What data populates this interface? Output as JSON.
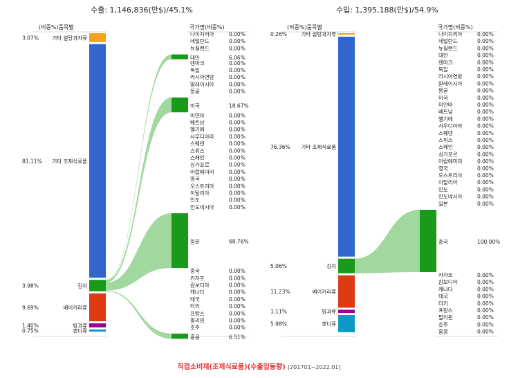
{
  "footer": {
    "title": "직접소비재(조제식료품)(수출입동향)",
    "period": "[201701~2022.01]"
  },
  "colors": {
    "flow": "#8fd18c",
    "country_node": "#1a9a1a"
  },
  "panels": [
    {
      "id": "export",
      "title": "수출: 1,146,836(만$)/45.1%",
      "cat_header": "(비중%)품목별",
      "country_header": "국가명(비중%)",
      "categories": [
        {
          "pct": "3.07%",
          "name": "기타 설탕과자류",
          "value": 3.07,
          "color": "#f7a21b"
        },
        {
          "pct": "81.11%",
          "name": "기타 조제식료품",
          "value": 81.11,
          "color": "#3366cc"
        },
        {
          "pct": "3.98%",
          "name": "김치",
          "value": 3.98,
          "color": "#1a9a1a"
        },
        {
          "pct": "9.69%",
          "name": "베이커리류",
          "value": 9.69,
          "color": "#dd3b15"
        },
        {
          "pct": "1.40%",
          "name": "빙과류",
          "value": 1.4,
          "color": "#990099"
        },
        {
          "pct": "0.75%",
          "name": "캔디류",
          "value": 0.75,
          "color": "#0f99c6"
        }
      ],
      "countries": [
        {
          "name": "나이지리아",
          "pct": "0.00%",
          "value": 0
        },
        {
          "name": "네덜란드",
          "pct": "0.00%",
          "value": 0
        },
        {
          "name": "뉴질랜드",
          "pct": "0.00%",
          "value": 0
        },
        {
          "name": "대만",
          "pct": "6.06%",
          "value": 6.06
        },
        {
          "name": "덴마크",
          "pct": "0.00%",
          "value": 0
        },
        {
          "name": "독일",
          "pct": "0.00%",
          "value": 0
        },
        {
          "name": "러시아연방",
          "pct": "0.00%",
          "value": 0
        },
        {
          "name": "말레이시아",
          "pct": "0.00%",
          "value": 0
        },
        {
          "name": "몽골",
          "pct": "0.00%",
          "value": 0
        },
        {
          "name": "미국",
          "pct": "18.67%",
          "value": 18.67
        },
        {
          "name": "미얀마",
          "pct": "0.00%",
          "value": 0
        },
        {
          "name": "베트남",
          "pct": "0.00%",
          "value": 0
        },
        {
          "name": "벨기에",
          "pct": "0.00%",
          "value": 0
        },
        {
          "name": "사우디아라",
          "pct": "0.00%",
          "value": 0
        },
        {
          "name": "스웨덴",
          "pct": "0.00%",
          "value": 0
        },
        {
          "name": "스위스",
          "pct": "0.00%",
          "value": 0
        },
        {
          "name": "스페인",
          "pct": "0.00%",
          "value": 0
        },
        {
          "name": "싱가포르",
          "pct": "0.00%",
          "value": 0
        },
        {
          "name": "아랍에미리",
          "pct": "0.00%",
          "value": 0
        },
        {
          "name": "영국",
          "pct": "0.00%",
          "value": 0
        },
        {
          "name": "오스트리아",
          "pct": "0.00%",
          "value": 0
        },
        {
          "name": "이탈리아",
          "pct": "0.00%",
          "value": 0
        },
        {
          "name": "인도",
          "pct": "0.00%",
          "value": 0
        },
        {
          "name": "인도네시아",
          "pct": "0.00%",
          "value": 0
        },
        {
          "name": "일본",
          "pct": "68.76%",
          "value": 68.76
        },
        {
          "name": "중국",
          "pct": "0.00%",
          "value": 0
        },
        {
          "name": "카자흐",
          "pct": "0.00%",
          "value": 0
        },
        {
          "name": "캄보디아",
          "pct": "0.00%",
          "value": 0
        },
        {
          "name": "캐나다",
          "pct": "0.00%",
          "value": 0
        },
        {
          "name": "태국",
          "pct": "0.00%",
          "value": 0
        },
        {
          "name": "터키",
          "pct": "0.00%",
          "value": 0
        },
        {
          "name": "프랑스",
          "pct": "0.00%",
          "value": 0
        },
        {
          "name": "필리핀",
          "pct": "0.00%",
          "value": 0
        },
        {
          "name": "호주",
          "pct": "0.00%",
          "value": 0
        },
        {
          "name": "홍콩",
          "pct": "6.51%",
          "value": 6.51
        }
      ],
      "flow_source": 2
    },
    {
      "id": "import",
      "title": "수입: 1,395,188(만$)/54.9%",
      "cat_header": "(비중%)품목별",
      "country_header": "국가명(비중%)",
      "categories": [
        {
          "pct": "0.26%",
          "name": "기타 설탕과자류",
          "value": 0.26,
          "color": "#f7a21b"
        },
        {
          "pct": "76.36%",
          "name": "기타 조제식료품",
          "value": 76.36,
          "color": "#3366cc"
        },
        {
          "pct": "5.06%",
          "name": "김치",
          "value": 5.06,
          "color": "#1a9a1a"
        },
        {
          "pct": "11.23%",
          "name": "베이커리류",
          "value": 11.23,
          "color": "#dd3b15"
        },
        {
          "pct": "1.11%",
          "name": "빙과류",
          "value": 1.11,
          "color": "#990099"
        },
        {
          "pct": "5.98%",
          "name": "캔디류",
          "value": 5.98,
          "color": "#0f99c6"
        }
      ],
      "countries": [
        {
          "name": "나이지리아",
          "pct": "0.00%",
          "value": 0
        },
        {
          "name": "네덜란드",
          "pct": "0.00%",
          "value": 0
        },
        {
          "name": "뉴질랜드",
          "pct": "0.00%",
          "value": 0
        },
        {
          "name": "대만",
          "pct": "0.00%",
          "value": 0
        },
        {
          "name": "덴마크",
          "pct": "0.00%",
          "value": 0
        },
        {
          "name": "독일",
          "pct": "0.00%",
          "value": 0
        },
        {
          "name": "러시아연방",
          "pct": "0.00%",
          "value": 0
        },
        {
          "name": "말레이시아",
          "pct": "0.00%",
          "value": 0
        },
        {
          "name": "몽골",
          "pct": "0.00%",
          "value": 0
        },
        {
          "name": "미국",
          "pct": "0.00%",
          "value": 0
        },
        {
          "name": "미얀마",
          "pct": "0.00%",
          "value": 0
        },
        {
          "name": "베트남",
          "pct": "0.00%",
          "value": 0
        },
        {
          "name": "벨기에",
          "pct": "0.00%",
          "value": 0
        },
        {
          "name": "사우디아라",
          "pct": "0.00%",
          "value": 0
        },
        {
          "name": "스웨덴",
          "pct": "0.00%",
          "value": 0
        },
        {
          "name": "스위스",
          "pct": "0.00%",
          "value": 0
        },
        {
          "name": "스페인",
          "pct": "0.00%",
          "value": 0
        },
        {
          "name": "싱가포르",
          "pct": "0.00%",
          "value": 0
        },
        {
          "name": "아랍에미리",
          "pct": "0.00%",
          "value": 0
        },
        {
          "name": "영국",
          "pct": "0.00%",
          "value": 0
        },
        {
          "name": "오스트리아",
          "pct": "0.00%",
          "value": 0
        },
        {
          "name": "이탈리아",
          "pct": "0.00%",
          "value": 0
        },
        {
          "name": "인도",
          "pct": "0.00%",
          "value": 0
        },
        {
          "name": "인도네시아",
          "pct": "0.00%",
          "value": 0
        },
        {
          "name": "일본",
          "pct": "0.00%",
          "value": 0
        },
        {
          "name": "중국",
          "pct": "100.00%",
          "value": 100
        },
        {
          "name": "카자흐",
          "pct": "0.00%",
          "value": 0
        },
        {
          "name": "캄보디아",
          "pct": "0.00%",
          "value": 0
        },
        {
          "name": "캐나다",
          "pct": "0.00%",
          "value": 0
        },
        {
          "name": "태국",
          "pct": "0.00%",
          "value": 0
        },
        {
          "name": "터키",
          "pct": "0.00%",
          "value": 0
        },
        {
          "name": "프랑스",
          "pct": "0.00%",
          "value": 0
        },
        {
          "name": "필리핀",
          "pct": "0.00%",
          "value": 0
        },
        {
          "name": "호주",
          "pct": "0.00%",
          "value": 0
        },
        {
          "name": "홍콩",
          "pct": "0.00%",
          "value": 0
        }
      ],
      "flow_source": 2
    }
  ]
}
